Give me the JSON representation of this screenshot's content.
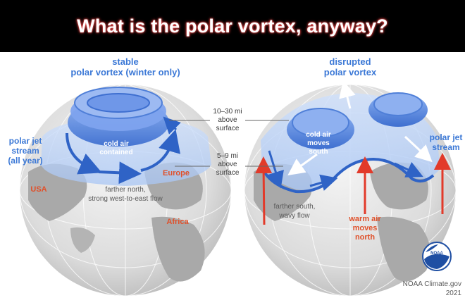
{
  "title": "What is the polar vortex, anyway?",
  "left_panel": {
    "heading_line1": "stable",
    "heading_line2": "polar vortex (winter only)",
    "jet_label_line1": "polar jet",
    "jet_label_line2": "stream",
    "jet_label_line3": "(all year)",
    "cold_air_line1": "cold air",
    "cold_air_line2": "contained",
    "flow_line1": "farther north,",
    "flow_line2": "strong west-to-east flow",
    "place_usa": "USA",
    "place_europe": "Europe",
    "place_africa": "Africa"
  },
  "right_panel": {
    "heading_line1": "disrupted",
    "heading_line2": "polar vortex",
    "jet_label_line1": "polar jet",
    "jet_label_line2": "stream",
    "cold_air_line1": "cold air",
    "cold_air_line2": "moves",
    "cold_air_line3": "south",
    "flow_line1": "farther south,",
    "flow_line2": "wavy flow",
    "warm_air_line1": "warm air",
    "warm_air_line2": "moves",
    "warm_air_line3": "north"
  },
  "altitude": {
    "upper_line1": "10–30 mi",
    "upper_line2": "above",
    "upper_line3": "surface",
    "lower_line1": "5–9 mi",
    "lower_line2": "above",
    "lower_line3": "surface"
  },
  "credit": {
    "logo_text": "NOAA",
    "line1": "NOAA Climate.gov",
    "line2": "2021"
  },
  "colors": {
    "jet_blue": "#3b78d6",
    "vortex_blue": "#5b8fe6",
    "warm_red": "#e0502a",
    "globe_gray": "#d9d9d9"
  }
}
